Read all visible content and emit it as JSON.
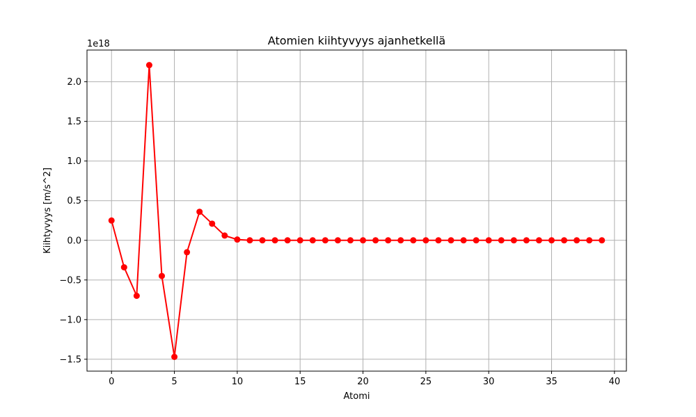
{
  "chart_data": {
    "type": "line",
    "title": "Atomien kiihtyvyys ajanhetkellä",
    "xlabel": "Atomi",
    "ylabel": "Kiihtyvyys [m/s^2]",
    "y_offset_label": "1e18",
    "y_scale": 1e+18,
    "xlim": [
      -1.95,
      40.95
    ],
    "ylim": [
      -1.65,
      2.4
    ],
    "x_ticks": [
      0,
      5,
      10,
      15,
      20,
      25,
      30,
      35,
      40
    ],
    "x_tick_labels": [
      "0",
      "5",
      "10",
      "15",
      "20",
      "25",
      "30",
      "35",
      "40"
    ],
    "y_ticks": [
      -1.5,
      -1.0,
      -0.5,
      0.0,
      0.5,
      1.0,
      1.5,
      2.0
    ],
    "y_tick_labels": [
      "−1.5",
      "−1.0",
      "−0.5",
      "0.0",
      "0.5",
      "1.0",
      "1.5",
      "2.0"
    ],
    "grid": true,
    "series": [
      {
        "name": "Kiihtyvyys",
        "color": "#ff0000",
        "marker": "circle",
        "x": [
          0,
          1,
          2,
          3,
          4,
          5,
          6,
          7,
          8,
          9,
          10,
          11,
          12,
          13,
          14,
          15,
          16,
          17,
          18,
          19,
          20,
          21,
          22,
          23,
          24,
          25,
          26,
          27,
          28,
          29,
          30,
          31,
          32,
          33,
          34,
          35,
          36,
          37,
          38,
          39
        ],
        "values": [
          0.25,
          -0.34,
          -0.7,
          2.21,
          -0.45,
          -1.47,
          -0.15,
          0.36,
          0.21,
          0.06,
          0.01,
          0.0,
          0.0,
          0.0,
          0.0,
          0.0,
          0.0,
          0.0,
          0.0,
          0.0,
          0.0,
          0.0,
          0.0,
          0.0,
          0.0,
          0.0,
          0.0,
          0.0,
          0.0,
          0.0,
          0.0,
          0.0,
          0.0,
          0.0,
          0.0,
          0.0,
          0.0,
          0.0,
          0.0,
          0.0
        ]
      }
    ]
  }
}
